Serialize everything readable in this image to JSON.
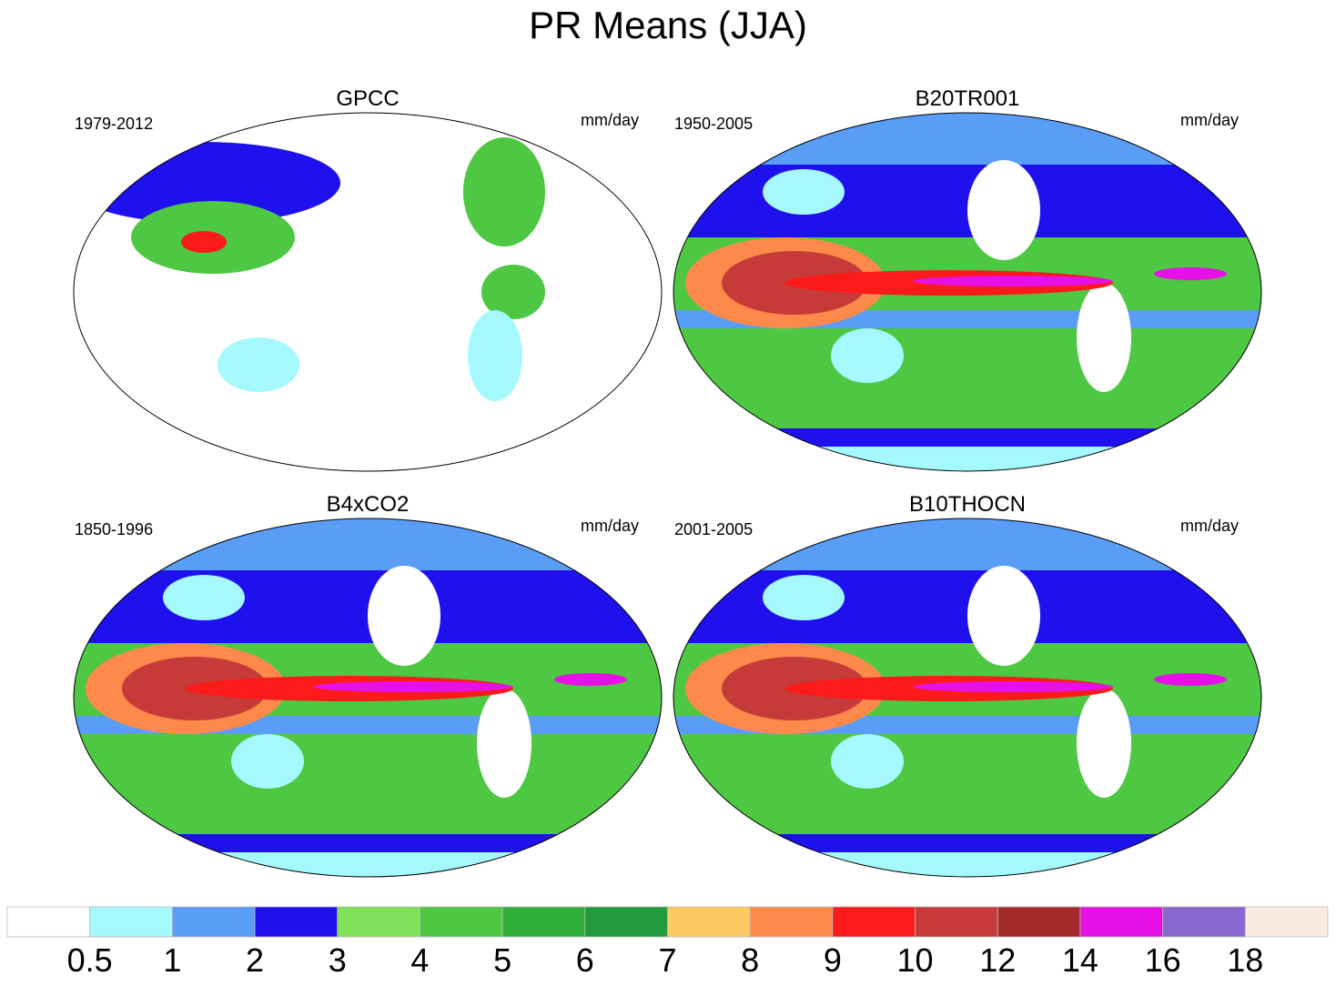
{
  "title": "PR Means (JJA)",
  "panels": [
    {
      "title": "GPCC",
      "period": "1979-2012",
      "units": "mm/day"
    },
    {
      "title": "B20TR001",
      "period": "1950-2005",
      "units": "mm/day"
    },
    {
      "title": "B4xCO2",
      "period": "1850-1996",
      "units": "mm/day"
    },
    {
      "title": "B10THOCN",
      "period": "2001-2005",
      "units": "mm/day"
    }
  ],
  "colorbar": {
    "levels": [
      0.5,
      1,
      2,
      3,
      4,
      5,
      6,
      7,
      8,
      9,
      10,
      12,
      14,
      16,
      18
    ],
    "colors": [
      "#ffffff",
      "#a5f9fd",
      "#5a9df7",
      "#1f10ee",
      "#7fe05a",
      "#4ec743",
      "#30ae3a",
      "#239a3b",
      "#fdc962",
      "#fd8a4b",
      "#fd1a1a",
      "#c73a3a",
      "#a32b2b",
      "#e710e7",
      "#8a68cf",
      "#f7ebe2"
    ]
  }
}
